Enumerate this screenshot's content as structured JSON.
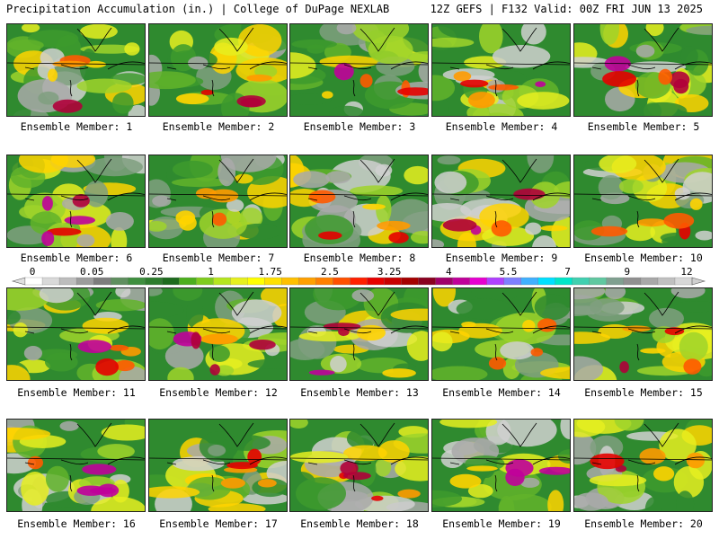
{
  "header": {
    "left_title": "Precipitation Accumulation (in.) | College of DuPage NEXLAB",
    "right_title": "12Z GEFS | F132 Valid: 00Z FRI JUN 13 2025"
  },
  "colorbar": {
    "labels": [
      "0",
      "0.05",
      "0.25",
      "1",
      "1.75",
      "2.5",
      "3.25",
      "4",
      "5.5",
      "7",
      "9",
      "12"
    ],
    "colors": [
      "#ffffff",
      "#d9d9d9",
      "#bdbdbd",
      "#9c9c9c",
      "#7d7d7d",
      "#5f8f5f",
      "#3f8f3f",
      "#2e7d2e",
      "#1e6b1e",
      "#4caf1e",
      "#7fcc1e",
      "#b5e61e",
      "#e6f01e",
      "#ffff00",
      "#ffe000",
      "#ffc000",
      "#ffa000",
      "#ff8000",
      "#ff5000",
      "#ff2000",
      "#e60000",
      "#c80000",
      "#a50000",
      "#8a0020",
      "#a0006a",
      "#c0009a",
      "#e600d0",
      "#b040ff",
      "#7f7fff",
      "#40b0ff",
      "#00e0ff",
      "#00e6c8",
      "#40d0b0",
      "#60c8a0",
      "#80a090",
      "#909090",
      "#a8a8a8",
      "#c0c0c0",
      "#d8d8d8"
    ]
  },
  "panels": [
    {
      "label": "Ensemble Member: 1"
    },
    {
      "label": "Ensemble Member: 2"
    },
    {
      "label": "Ensemble Member: 3"
    },
    {
      "label": "Ensemble Member: 4"
    },
    {
      "label": "Ensemble Member: 5"
    },
    {
      "label": "Ensemble Member: 6"
    },
    {
      "label": "Ensemble Member: 7"
    },
    {
      "label": "Ensemble Member: 8"
    },
    {
      "label": "Ensemble Member: 9"
    },
    {
      "label": "Ensemble Member: 10"
    },
    {
      "label": "Ensemble Member: 11"
    },
    {
      "label": "Ensemble Member: 12"
    },
    {
      "label": "Ensemble Member: 13"
    },
    {
      "label": "Ensemble Member: 14"
    },
    {
      "label": "Ensemble Member: 15"
    },
    {
      "label": "Ensemble Member: 16"
    },
    {
      "label": "Ensemble Member: 17"
    },
    {
      "label": "Ensemble Member: 18"
    },
    {
      "label": "Ensemble Member: 19"
    },
    {
      "label": "Ensemble Member: 20"
    }
  ]
}
